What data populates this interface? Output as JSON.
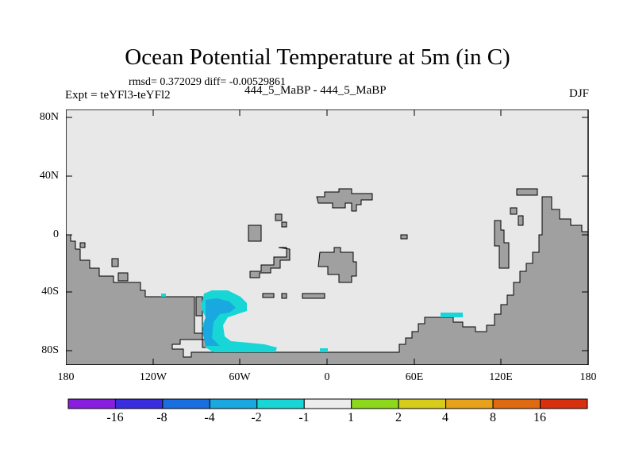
{
  "header": {
    "title": "Ocean Potential Temperature at 5m (in C)",
    "stats": "rmsd= 0.372029 diff= -0.00529861",
    "experiment": "Expt = teYFl3-teYFl2",
    "cases": "444_5_MaBP - 444_5_MaBP",
    "season": "DJF"
  },
  "axes": {
    "y_ticks": [
      "80N",
      "40N",
      "0",
      "40S",
      "80S"
    ],
    "x_ticks": [
      "180",
      "120W",
      "60W",
      "0",
      "60E",
      "120E",
      "180"
    ]
  },
  "colorbar": {
    "labels": [
      "-16",
      "-8",
      "-4",
      "-2",
      "-1",
      "1",
      "2",
      "4",
      "8",
      "16"
    ],
    "colors": [
      "#8a1ee0",
      "#3a2de0",
      "#1a6fe0",
      "#1aa8e0",
      "#18d6d6",
      "#ececec",
      "#8ed81c",
      "#d8cc1a",
      "#e8a21a",
      "#e06a12",
      "#d8300e"
    ]
  },
  "map_colors": {
    "ocean_background": "#e8e8e8",
    "land": "#a0a0a0",
    "anomaly_cool_light": "#18d6d6",
    "anomaly_cool_medium": "#1aa8e0"
  }
}
